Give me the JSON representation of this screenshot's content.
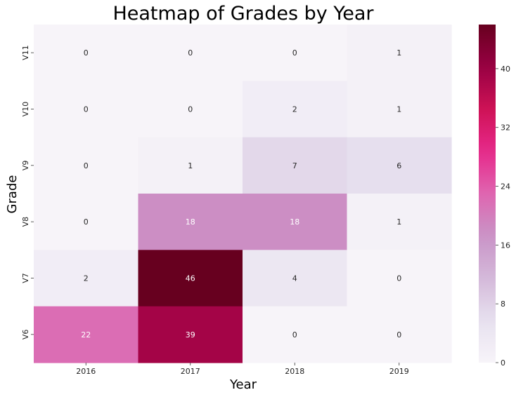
{
  "chart_data": {
    "type": "heatmap",
    "title": "Heatmap of Grades by Year",
    "xlabel": "Year",
    "ylabel": "Grade",
    "x_categories": [
      "2016",
      "2017",
      "2018",
      "2019"
    ],
    "y_categories": [
      "V11",
      "V10",
      "V9",
      "V8",
      "V7",
      "V6"
    ],
    "values": [
      [
        0,
        0,
        0,
        1
      ],
      [
        0,
        0,
        2,
        1
      ],
      [
        0,
        1,
        7,
        6
      ],
      [
        0,
        18,
        18,
        1
      ],
      [
        2,
        46,
        4,
        0
      ],
      [
        22,
        39,
        0,
        0
      ]
    ],
    "colorbar": {
      "range": [
        0,
        46
      ],
      "ticks": [
        0,
        8,
        16,
        24,
        32,
        40
      ],
      "colormap": "PuRd"
    },
    "annotations": true,
    "grid": false,
    "colors": {
      "low": "#f7f4f9",
      "mid": "#df65b0",
      "high": "#67001f",
      "text_dark": "#262626",
      "text_light": "#ffffff"
    }
  }
}
